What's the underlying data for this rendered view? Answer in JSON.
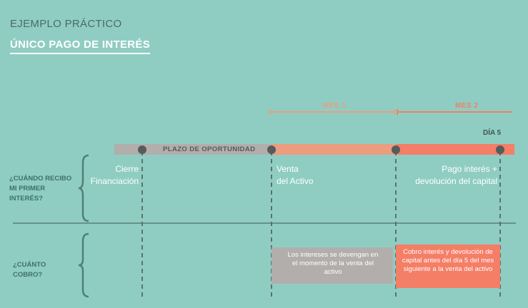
{
  "header": {
    "subtitle": "EJEMPLO PRÁCTICO",
    "title": "ÚNICO PAGO DE INTERÉS"
  },
  "questions": {
    "when": "¿CUÁNDO RECIBO MI PRIMER INTERÉS?",
    "how_much": "¿CUÁNTO COBRO?"
  },
  "periods": {
    "month1": "MES 1",
    "month2": "MES 2",
    "day_marker": "DÍA 5"
  },
  "timeline": {
    "opportunity_label": "PLAZO DE OPORTUNIDAD"
  },
  "milestones": [
    {
      "label_line1": "Cierre",
      "label_line2": "Financiación"
    },
    {
      "label_line1": "Venta",
      "label_line2": "del Activo"
    },
    {
      "label_line1": "Pago interés +",
      "label_line2": "devolución del capital"
    }
  ],
  "boxes": {
    "interest_accrual": "Los intereses se devengan en el momento de la venta del activo",
    "payment": "Cobro interés y devolución de capital antes del día 5 del mes siguiente a la venta del activo"
  },
  "colors": {
    "background": "#8fcdc3",
    "grey_bar": "#b2aeab",
    "salmon_light": "#ec9c7f",
    "salmon": "#f47e66",
    "dot": "#555c5b",
    "brace": "#4f8077"
  }
}
